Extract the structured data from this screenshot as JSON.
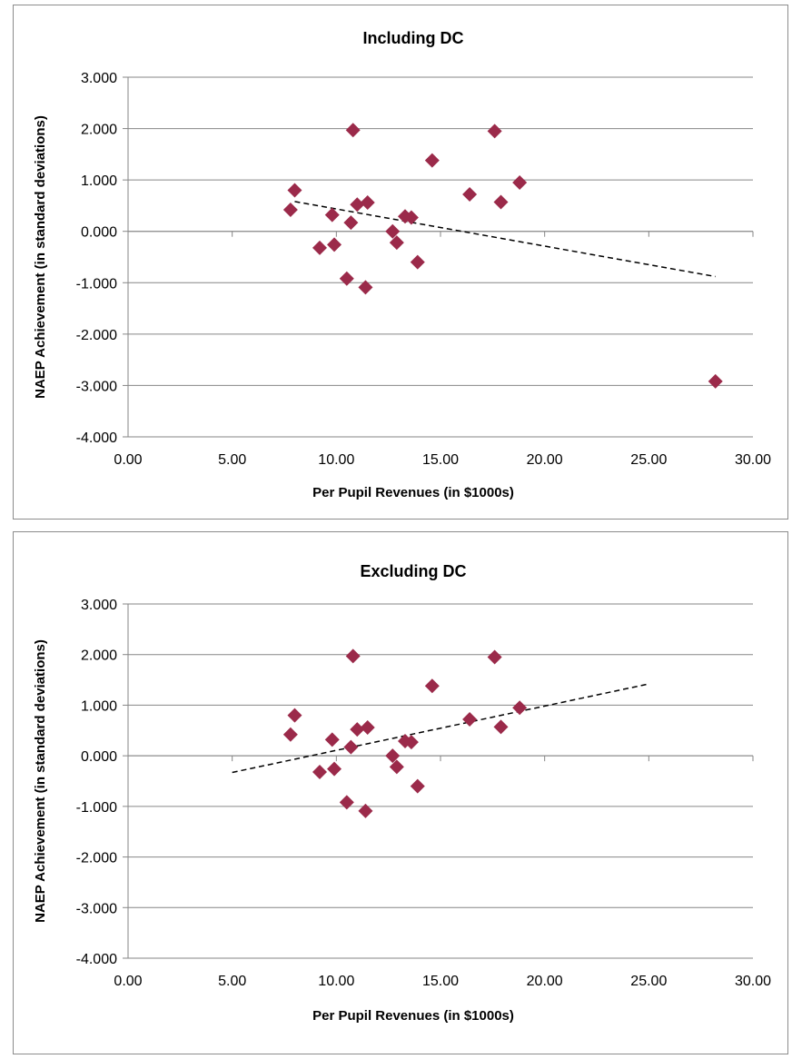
{
  "charts": [
    {
      "type": "scatter",
      "title": "Including DC",
      "xlabel": "Per Pupil Revenues (in $1000s)",
      "ylabel": "NAEP Achievement (in standard deviations)",
      "xlim": [
        0,
        30
      ],
      "ylim": [
        -4,
        3
      ],
      "x_ticks": [
        "0.00",
        "5.00",
        "10.00",
        "15.00",
        "20.00",
        "25.00",
        "30.00"
      ],
      "y_ticks": [
        "3.000",
        "2.000",
        "1.000",
        "0.000",
        "-1.000",
        "-2.000",
        "-3.000",
        "-4.000"
      ],
      "grid": "horizontal",
      "legend": "none",
      "marker": "diamond",
      "marker_color": "#9b2a4a",
      "trendline_color": "#000000",
      "points": [
        [
          7.8,
          0.42
        ],
        [
          8.0,
          0.8
        ],
        [
          9.2,
          -0.32
        ],
        [
          9.8,
          0.32
        ],
        [
          9.9,
          -0.26
        ],
        [
          10.5,
          -0.92
        ],
        [
          10.7,
          0.17
        ],
        [
          10.8,
          1.97
        ],
        [
          11.0,
          0.52
        ],
        [
          11.4,
          -1.09
        ],
        [
          11.5,
          0.56
        ],
        [
          12.7,
          0.0
        ],
        [
          12.9,
          -0.22
        ],
        [
          13.3,
          0.29
        ],
        [
          13.6,
          0.27
        ],
        [
          13.9,
          -0.6
        ],
        [
          14.6,
          1.38
        ],
        [
          16.4,
          0.72
        ],
        [
          17.6,
          1.95
        ],
        [
          17.9,
          0.57
        ],
        [
          18.8,
          0.95
        ],
        [
          28.2,
          -2.92
        ]
      ],
      "trendline": {
        "x": [
          8.0,
          28.2
        ],
        "y": [
          0.58,
          -0.88
        ]
      }
    },
    {
      "type": "scatter",
      "title": "Excluding DC",
      "xlabel": "Per Pupil Revenues (in $1000s)",
      "ylabel": "NAEP Achievement (in standard deviations)",
      "xlim": [
        0,
        30
      ],
      "ylim": [
        -4,
        3
      ],
      "x_ticks": [
        "0.00",
        "5.00",
        "10.00",
        "15.00",
        "20.00",
        "25.00",
        "30.00"
      ],
      "y_ticks": [
        "3.000",
        "2.000",
        "1.000",
        "0.000",
        "-1.000",
        "-2.000",
        "-3.000",
        "-4.000"
      ],
      "grid": "horizontal",
      "legend": "none",
      "marker": "diamond",
      "marker_color": "#9b2a4a",
      "trendline_color": "#000000",
      "points": [
        [
          7.8,
          0.42
        ],
        [
          8.0,
          0.8
        ],
        [
          9.2,
          -0.32
        ],
        [
          9.8,
          0.32
        ],
        [
          9.9,
          -0.26
        ],
        [
          10.5,
          -0.92
        ],
        [
          10.7,
          0.17
        ],
        [
          10.8,
          1.97
        ],
        [
          11.0,
          0.52
        ],
        [
          11.4,
          -1.09
        ],
        [
          11.5,
          0.56
        ],
        [
          12.7,
          0.0
        ],
        [
          12.9,
          -0.22
        ],
        [
          13.3,
          0.29
        ],
        [
          13.6,
          0.27
        ],
        [
          13.9,
          -0.6
        ],
        [
          14.6,
          1.38
        ],
        [
          16.4,
          0.72
        ],
        [
          17.6,
          1.95
        ],
        [
          17.9,
          0.57
        ],
        [
          18.8,
          0.95
        ]
      ],
      "trendline": {
        "x": [
          5.0,
          25.0
        ],
        "y": [
          -0.33,
          1.42
        ]
      }
    }
  ]
}
